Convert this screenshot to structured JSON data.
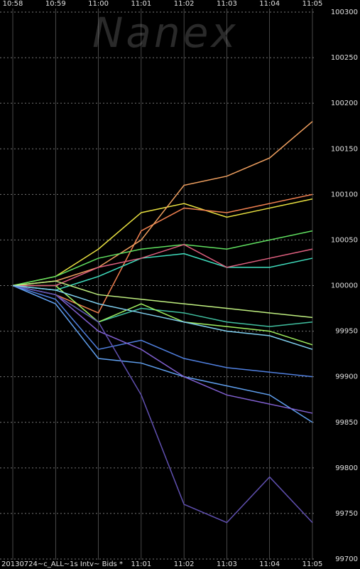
{
  "chart_data": {
    "type": "line",
    "watermark": "Nanex",
    "subtitle": "20130724~c_ALL~1s Intv~ Bids *",
    "categories": [
      "10:58",
      "10:59",
      "11:00",
      "11:01",
      "11:02",
      "11:03",
      "11:04",
      "11:05"
    ],
    "ylim": [
      99700,
      100300
    ],
    "yticks": [
      99700,
      99750,
      99800,
      99850,
      99900,
      99950,
      100000,
      100050,
      100100,
      100150,
      100200,
      100250,
      100300
    ],
    "grid": true,
    "series": [
      {
        "name": "yellow",
        "color": "#e8e040",
        "values": [
          100000,
          100010,
          100040,
          100080,
          100090,
          100075,
          100085,
          100095
        ]
      },
      {
        "name": "orange",
        "color": "#f08050",
        "values": [
          100000,
          99990,
          99970,
          100060,
          100085,
          100080,
          100090,
          100100
        ]
      },
      {
        "name": "light-orange",
        "color": "#f0a060",
        "values": [
          100000,
          100005,
          100020,
          100050,
          100110,
          100120,
          100140,
          100180
        ]
      },
      {
        "name": "green",
        "color": "#60e060",
        "values": [
          100000,
          100010,
          100030,
          100040,
          100045,
          100040,
          100050,
          100060
        ]
      },
      {
        "name": "cyan",
        "color": "#40e0c0",
        "values": [
          100000,
          99995,
          100010,
          100030,
          100035,
          100020,
          100020,
          100030
        ]
      },
      {
        "name": "teal",
        "color": "#40c0a0",
        "values": [
          100000,
          99990,
          99960,
          99975,
          99970,
          99960,
          99955,
          99960
        ]
      },
      {
        "name": "lime",
        "color": "#a0f060",
        "values": [
          100000,
          100000,
          99960,
          99980,
          99960,
          99955,
          99950,
          99935
        ]
      },
      {
        "name": "blue",
        "color": "#5080e0",
        "values": [
          100000,
          99985,
          99930,
          99940,
          99920,
          99910,
          99905,
          99900
        ]
      },
      {
        "name": "light-blue",
        "color": "#60a0f0",
        "values": [
          100000,
          99980,
          99920,
          99915,
          99900,
          99890,
          99880,
          99850
        ]
      },
      {
        "name": "purple",
        "color": "#8060d0",
        "values": [
          100000,
          99990,
          99950,
          99930,
          99900,
          99880,
          99870,
          99860
        ]
      },
      {
        "name": "dark-purple",
        "color": "#6050b0",
        "values": [
          100000,
          99990,
          99960,
          99880,
          99760,
          99740,
          99790,
          99740
        ]
      },
      {
        "name": "pink",
        "color": "#e06080",
        "values": [
          100000,
          100000,
          100020,
          100030,
          100045,
          100020,
          100030,
          100040
        ]
      },
      {
        "name": "pale-green",
        "color": "#c0f080",
        "values": [
          100000,
          100005,
          99990,
          99985,
          99980,
          99975,
          99970,
          99965
        ]
      },
      {
        "name": "sky",
        "color": "#80d0f0",
        "values": [
          100000,
          99995,
          99980,
          99970,
          99960,
          99950,
          99945,
          99930
        ]
      }
    ]
  }
}
